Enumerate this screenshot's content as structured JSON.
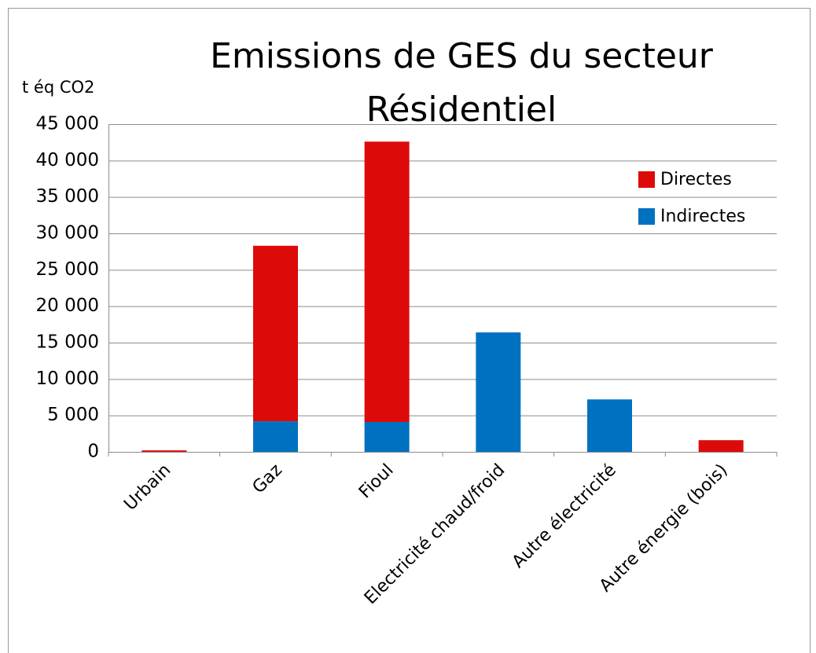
{
  "chart_data": {
    "type": "stacked_bar",
    "title": "Emissions de GES du secteur Résidentiel",
    "y_axis_label": "t éq CO2",
    "categories": [
      "Urbain",
      "Gaz",
      "Fioul",
      "Electricité chaud/froid",
      "Autre électricité",
      "Autre énergie (bois)"
    ],
    "series": [
      {
        "name": "Directes",
        "color": "#dd0a0a",
        "values": [
          200,
          24100,
          38500,
          0,
          0,
          1600
        ]
      },
      {
        "name": "Indirectes",
        "color": "#0071c1",
        "values": [
          0,
          4200,
          4100,
          16400,
          7200,
          0
        ]
      }
    ],
    "stack_order": [
      "Indirectes",
      "Directes"
    ],
    "ylim": [
      0,
      45000
    ],
    "yticks": [
      0,
      {
        "value": 5000,
        "label": "5 000"
      },
      {
        "value": 10000,
        "label": "10 000"
      },
      {
        "value": 15000,
        "label": "15 000"
      },
      {
        "value": 20000,
        "label": "20 000"
      },
      {
        "value": 25000,
        "label": "25 000"
      },
      {
        "value": 30000,
        "label": "30 000"
      },
      {
        "value": 35000,
        "label": "35 000"
      },
      {
        "value": 40000,
        "label": "40 000"
      },
      {
        "value": 45000,
        "label": "45 000"
      }
    ],
    "grid": true,
    "legend": "top-right"
  }
}
